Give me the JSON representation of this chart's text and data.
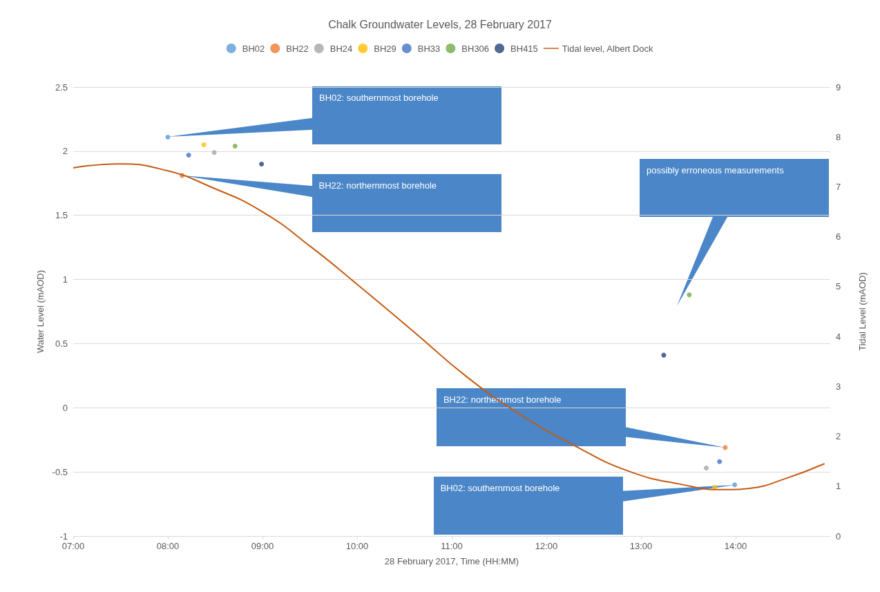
{
  "chart_data": {
    "type": "scatter",
    "title": "Chalk Groundwater Levels, 28 February 2017",
    "xlabel": "28 February 2017, Time (HH:MM)",
    "ylabel": "Water Level (mAOD)",
    "y2label": "Tidal Level (mAOD)",
    "xlim": [
      7,
      15
    ],
    "xticks": [
      {
        "value": 7,
        "label": "07:00"
      },
      {
        "value": 8,
        "label": "08:00"
      },
      {
        "value": 9,
        "label": "09:00"
      },
      {
        "value": 10,
        "label": "10:00"
      },
      {
        "value": 11,
        "label": "11:00"
      },
      {
        "value": 12,
        "label": "12:00"
      },
      {
        "value": 13,
        "label": "13:00"
      },
      {
        "value": 14,
        "label": "14:00"
      }
    ],
    "ylim": [
      -1,
      2.5
    ],
    "yticks": [
      -1,
      -0.5,
      0,
      0.5,
      1,
      1.5,
      2,
      2.5
    ],
    "y2lim": [
      0,
      9
    ],
    "y2ticks": [
      0,
      1,
      2,
      3,
      4,
      5,
      6,
      7,
      8,
      9
    ],
    "grid": "y",
    "legend": "top",
    "marker": "circle",
    "series": [
      {
        "name": "BH02",
        "color": "#5b9bd5",
        "x": [
          8.0,
          13.99
        ],
        "values": [
          2.11,
          -0.6
        ]
      },
      {
        "name": "BH22",
        "color": "#ed7d31",
        "x": [
          8.15,
          13.89
        ],
        "values": [
          1.81,
          -0.31
        ]
      },
      {
        "name": "BH24",
        "color": "#a5a5a5",
        "x": [
          8.49,
          13.69
        ],
        "values": [
          1.99,
          -0.47
        ]
      },
      {
        "name": "BH29",
        "color": "#ffc000",
        "x": [
          8.38,
          13.78
        ],
        "values": [
          2.05,
          -0.62
        ]
      },
      {
        "name": "BH33",
        "color": "#4472c4",
        "x": [
          8.22,
          13.83
        ],
        "values": [
          1.97,
          -0.42
        ]
      },
      {
        "name": "BH306",
        "color": "#70ad47",
        "x": [
          8.71,
          13.51
        ],
        "values": [
          2.04,
          0.88
        ]
      },
      {
        "name": "BH415",
        "color": "#264478",
        "x": [
          8.99,
          13.24
        ],
        "values": [
          1.9,
          0.41
        ]
      },
      {
        "name": "Tidal level, Albert Dock",
        "type": "line",
        "axis": "y2",
        "marker": "none",
        "color": "#c55a11",
        "x": [
          7.0,
          7.48,
          8.0,
          8.44,
          8.99,
          9.51,
          10.01,
          10.59,
          11.16,
          11.73,
          12.3,
          12.87,
          13.44,
          13.87,
          14.16,
          14.51,
          14.94
        ],
        "values": [
          7.38,
          7.46,
          7.32,
          7.01,
          6.51,
          5.8,
          5.03,
          4.11,
          3.19,
          2.43,
          1.81,
          1.3,
          1.03,
          0.93,
          0.96,
          1.14,
          1.45
        ]
      }
    ],
    "annotations": [
      {
        "text": "BH02: southernmost borehole",
        "x": 8.0,
        "y": 2.11
      },
      {
        "text": "BH22: northernmost borehole",
        "x": 8.15,
        "y": 1.81
      },
      "possibly erroneous measurements",
      {
        "text": "BH22: northernmost borehole",
        "x": 13.89,
        "y": -0.31
      },
      {
        "text": "BH02: southernmost borehole",
        "x": 13.99,
        "y": -0.6
      }
    ]
  }
}
